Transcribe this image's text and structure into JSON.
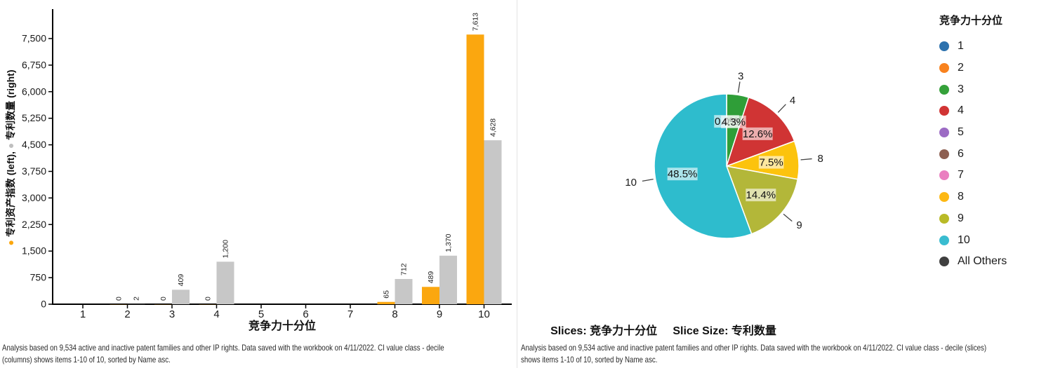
{
  "chart_data": [
    {
      "type": "bar",
      "title": "",
      "categories": [
        "1",
        "2",
        "3",
        "4",
        "5",
        "6",
        "7",
        "8",
        "9",
        "10"
      ],
      "series": [
        {
          "name": "专利资产指数",
          "axis_side": "left",
          "color": "#fba70f",
          "values": [
            null,
            0,
            0,
            0,
            null,
            null,
            null,
            65,
            489,
            7613
          ],
          "labels": [
            null,
            "0",
            "0",
            "0",
            null,
            null,
            null,
            "65",
            "489",
            "7,613"
          ]
        },
        {
          "name": "专利数量",
          "axis_side": "right",
          "color": "#c7c7c7",
          "values": [
            null,
            2,
            409,
            1200,
            null,
            null,
            null,
            712,
            1370,
            4628
          ],
          "labels": [
            null,
            "2",
            "409",
            "1,200",
            null,
            null,
            null,
            "712",
            "1,370",
            "4,628"
          ]
        }
      ],
      "xlabel": "竞争力十分位",
      "ylabel": {
        "series1": "专利资产指数 (left)",
        "sep": ",  ",
        "series2": "专利数量 (right)",
        "dot1_color": "#fba70f",
        "dot2_color": "#bfbfbf"
      },
      "yticks": [
        0,
        750,
        1500,
        2250,
        3000,
        3750,
        4500,
        5250,
        6000,
        6750,
        7500
      ],
      "ytick_labels": [
        "0",
        "750",
        "1,500",
        "2,250",
        "3,000",
        "3,750",
        "4,500",
        "5,250",
        "6,000",
        "6,750",
        "7,500"
      ],
      "ylim": [
        0,
        8300
      ],
      "grid": false,
      "footnote_line1": "Analysis based on 9,534 active and inactive patent families and other IP rights. Data saved with the workbook on 4/11/2022. CI value class - decile",
      "footnote_line2": "(columns) shows items 1-10 of 10, sorted by Name asc."
    },
    {
      "type": "pie",
      "slices_field": "竞争力十分位",
      "size_field": "专利数量",
      "slices": [
        {
          "name": "2",
          "value": 2,
          "pct_label": "0.0%",
          "color": "#f8821e",
          "callout": false
        },
        {
          "name": "3",
          "value": 409,
          "pct_label": "4.3%",
          "color": "#2f9e38",
          "callout": true
        },
        {
          "name": "4",
          "value": 1200,
          "pct_label": "12.6%",
          "color": "#d03434",
          "callout": true
        },
        {
          "name": "8",
          "value": 712,
          "pct_label": "7.5%",
          "color": "#fcc30d",
          "callout": true
        },
        {
          "name": "9",
          "value": 1370,
          "pct_label": "14.4%",
          "color": "#b3b739",
          "callout": true
        },
        {
          "name": "10",
          "value": 4628,
          "pct_label": "48.5%",
          "color": "#2ebccd",
          "callout": true
        }
      ],
      "bottom_title": "Slices: 竞争力十分位     Slice Size: 专利数量",
      "legend": {
        "title": "竞争力十分位",
        "items": [
          {
            "label": "1",
            "color": "#2c71ad"
          },
          {
            "label": "2",
            "color": "#f8821e"
          },
          {
            "label": "3",
            "color": "#35a13a"
          },
          {
            "label": "4",
            "color": "#d13434"
          },
          {
            "label": "5",
            "color": "#9c6bc4"
          },
          {
            "label": "6",
            "color": "#8d5f51"
          },
          {
            "label": "7",
            "color": "#ea7fc0"
          },
          {
            "label": "8",
            "color": "#fdb813"
          },
          {
            "label": "9",
            "color": "#b9ba27"
          },
          {
            "label": "10",
            "color": "#39bcd0"
          },
          {
            "label": "All Others",
            "color": "#3f3f3f"
          }
        ]
      },
      "footnote_line1": "Analysis based on 9,534 active and inactive patent families and other IP rights. Data saved with the workbook on 4/11/2022. CI value class - decile (slices)",
      "footnote_line2": "shows items 1-10 of 10, sorted by Name asc."
    }
  ]
}
